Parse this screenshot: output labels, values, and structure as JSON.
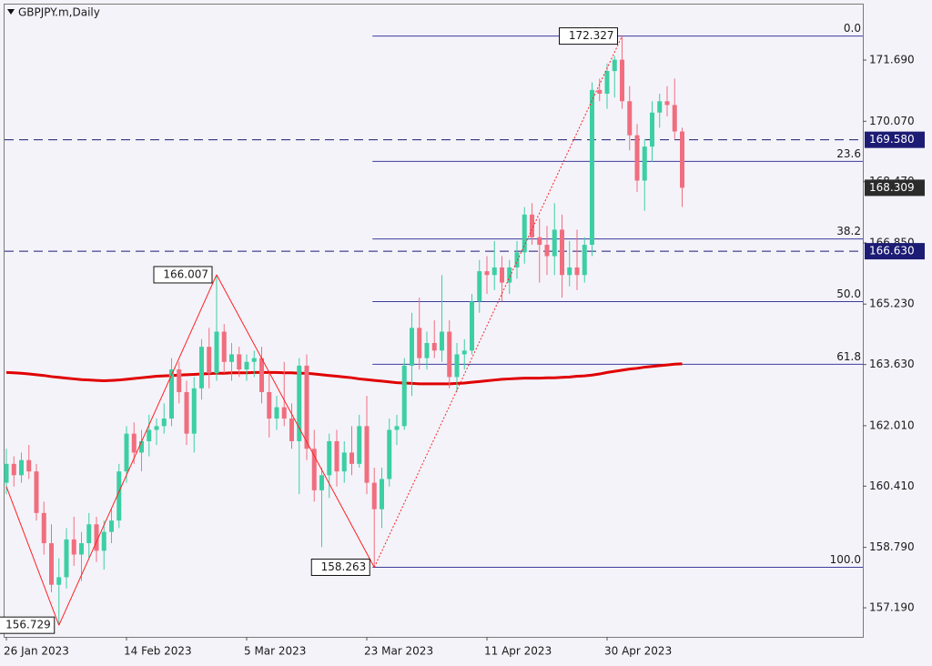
{
  "chart_data": {
    "type": "candlestick",
    "title": "GBPJPY.m,Daily",
    "categories": [
      "26 Jan 2023",
      null,
      null,
      null,
      null,
      null,
      null,
      null,
      null,
      null,
      null,
      null,
      null,
      null,
      null,
      null,
      "14 Feb 2023",
      null,
      null,
      null,
      null,
      null,
      null,
      null,
      null,
      null,
      null,
      null,
      null,
      null,
      null,
      null,
      "5 Mar 2023",
      null,
      null,
      null,
      null,
      null,
      null,
      null,
      null,
      null,
      null,
      null,
      null,
      null,
      null,
      null,
      "23 Mar 2023",
      null,
      null,
      null,
      null,
      null,
      null,
      null,
      null,
      null,
      null,
      null,
      null,
      null,
      null,
      null,
      "11 Apr 2023",
      null,
      null,
      null,
      null,
      null,
      null,
      null,
      null,
      null,
      null,
      null,
      null,
      null,
      null,
      null,
      "30 Apr 2023",
      null,
      null,
      null,
      null,
      null,
      null,
      null,
      null,
      null,
      null
    ],
    "open": [
      160.5,
      161.0,
      160.7,
      161.1,
      160.8,
      159.7,
      158.9,
      157.8,
      158.0,
      159.0,
      158.6,
      158.9,
      159.4,
      158.7,
      159.2,
      159.5,
      160.8,
      161.8,
      161.3,
      161.6,
      161.9,
      162.0,
      162.2,
      163.5,
      162.9,
      161.8,
      163.0,
      164.1,
      163.4,
      164.5,
      163.7,
      163.9,
      163.5,
      163.7,
      163.8,
      162.9,
      162.2,
      162.5,
      162.2,
      161.6,
      163.6,
      161.4,
      160.3,
      160.7,
      161.6,
      160.8,
      161.3,
      161.0,
      162.0,
      160.5,
      159.8,
      160.6,
      161.9,
      162.0,
      163.6,
      164.6,
      163.8,
      164.2,
      164.0,
      164.5,
      163.3,
      163.9,
      164.0,
      165.3,
      166.1,
      166.0,
      166.2,
      165.8,
      166.2,
      166.6,
      167.6,
      167.0,
      166.8,
      166.5,
      167.2,
      166.0,
      166.2,
      166.0,
      166.8,
      170.9,
      170.8,
      171.4,
      171.7,
      170.6,
      169.7,
      168.5,
      169.4,
      170.3,
      170.6,
      170.5,
      169.8
    ],
    "high": [
      161.4,
      161.2,
      161.3,
      161.5,
      161.0,
      160.0,
      159.4,
      158.5,
      159.3,
      159.6,
      159.2,
      159.7,
      159.6,
      159.5,
      159.8,
      161.0,
      162.0,
      162.1,
      161.9,
      162.3,
      162.2,
      162.6,
      163.8,
      163.7,
      163.2,
      163.3,
      164.3,
      164.6,
      166.007,
      164.7,
      164.2,
      164.1,
      163.9,
      164.0,
      164.1,
      163.4,
      162.8,
      163.7,
      162.6,
      163.8,
      163.9,
      161.9,
      160.9,
      161.8,
      161.9,
      161.6,
      162.0,
      162.3,
      162.8,
      160.9,
      160.9,
      162.2,
      162.3,
      163.8,
      165.0,
      165.4,
      164.5,
      164.8,
      166.0,
      164.8,
      164.2,
      164.3,
      165.5,
      166.4,
      166.5,
      166.9,
      166.5,
      166.4,
      166.9,
      167.8,
      167.9,
      167.5,
      167.3,
      167.9,
      167.6,
      166.9,
      167.2,
      167.0,
      171.1,
      171.2,
      171.6,
      171.8,
      172.327,
      171.0,
      170.0,
      169.6,
      170.6,
      170.8,
      171.0,
      171.2,
      169.9
    ],
    "low": [
      160.2,
      160.4,
      160.5,
      160.6,
      159.5,
      158.6,
      157.6,
      156.729,
      157.7,
      158.3,
      157.9,
      158.5,
      158.4,
      158.2,
      158.9,
      159.3,
      160.5,
      161.0,
      160.8,
      161.2,
      161.5,
      161.8,
      162.0,
      162.6,
      161.5,
      161.3,
      162.7,
      163.0,
      163.2,
      163.4,
      163.2,
      163.3,
      163.2,
      163.3,
      162.6,
      161.7,
      161.9,
      162.0,
      161.4,
      160.2,
      161.1,
      160.0,
      158.8,
      160.1,
      160.4,
      160.5,
      160.7,
      160.9,
      160.2,
      158.263,
      159.3,
      160.4,
      161.5,
      161.9,
      162.8,
      163.5,
      163.5,
      163.8,
      163.7,
      163.0,
      162.9,
      163.5,
      163.9,
      165.0,
      165.5,
      165.6,
      165.3,
      165.5,
      165.9,
      166.3,
      166.8,
      165.8,
      166.0,
      166.0,
      165.4,
      165.7,
      165.6,
      165.8,
      166.5,
      170.6,
      170.4,
      170.7,
      170.4,
      169.3,
      168.2,
      167.7,
      169.0,
      169.9,
      170.2,
      169.6,
      167.8
    ],
    "close": [
      161.0,
      160.7,
      161.1,
      160.8,
      159.7,
      158.9,
      157.8,
      158.0,
      159.0,
      158.6,
      158.9,
      159.4,
      158.7,
      159.2,
      159.5,
      160.8,
      161.8,
      161.3,
      161.6,
      161.9,
      162.0,
      162.2,
      163.5,
      162.9,
      161.8,
      163.0,
      164.1,
      163.4,
      164.5,
      163.7,
      163.9,
      163.5,
      163.7,
      163.8,
      162.9,
      162.2,
      162.5,
      162.2,
      161.6,
      163.6,
      161.4,
      160.3,
      160.7,
      161.6,
      160.8,
      161.3,
      161.0,
      162.0,
      160.5,
      159.8,
      160.6,
      161.9,
      162.0,
      163.6,
      164.6,
      163.8,
      164.2,
      164.0,
      164.5,
      163.3,
      163.9,
      164.0,
      165.3,
      166.1,
      166.0,
      166.2,
      165.8,
      166.2,
      166.6,
      167.6,
      167.0,
      166.8,
      166.5,
      167.2,
      166.0,
      166.2,
      166.0,
      166.8,
      170.9,
      170.8,
      171.4,
      171.7,
      170.6,
      169.7,
      168.5,
      169.4,
      170.3,
      170.6,
      170.5,
      169.8,
      168.309
    ],
    "moving_average": [
      163.42,
      163.41,
      163.4,
      163.38,
      163.36,
      163.34,
      163.31,
      163.29,
      163.27,
      163.25,
      163.23,
      163.22,
      163.21,
      163.2,
      163.21,
      163.22,
      163.24,
      163.26,
      163.28,
      163.3,
      163.32,
      163.33,
      163.34,
      163.35,
      163.36,
      163.37,
      163.38,
      163.39,
      163.4,
      163.4,
      163.41,
      163.41,
      163.41,
      163.42,
      163.42,
      163.42,
      163.42,
      163.41,
      163.41,
      163.4,
      163.4,
      163.38,
      163.36,
      163.34,
      163.32,
      163.3,
      163.28,
      163.25,
      163.23,
      163.21,
      163.19,
      163.17,
      163.15,
      163.14,
      163.13,
      163.12,
      163.12,
      163.12,
      163.12,
      163.12,
      163.13,
      163.14,
      163.16,
      163.18,
      163.2,
      163.22,
      163.24,
      163.25,
      163.26,
      163.27,
      163.27,
      163.27,
      163.28,
      163.28,
      163.29,
      163.3,
      163.32,
      163.33,
      163.35,
      163.38,
      163.42,
      163.45,
      163.48,
      163.51,
      163.53,
      163.56,
      163.58,
      163.6,
      163.62,
      163.64,
      163.65
    ],
    "up_color": "#3ccfa3",
    "down_color": "#f06e7e",
    "ma_color": "#e00000",
    "zigzag_color": "#ff2020",
    "zigzag": [
      {
        "index": 0,
        "price": 160.4
      },
      {
        "index": 7,
        "price": 156.729
      },
      {
        "index": 28,
        "price": 166.007
      },
      {
        "index": 49,
        "price": 158.263
      },
      {
        "index": 82,
        "price": 172.327
      }
    ],
    "fib_color": "#3c3c9c",
    "fib_levels": [
      {
        "label": "0.0",
        "price": 172.327
      },
      {
        "label": "23.6",
        "price": 169.008
      },
      {
        "label": "38.2",
        "price": 166.955
      },
      {
        "label": "50.0",
        "price": 165.295
      },
      {
        "label": "61.8",
        "price": 163.636
      },
      {
        "label": "100.0",
        "price": 158.263
      }
    ],
    "hlines": [
      {
        "value": 169.58,
        "label": "169.580"
      },
      {
        "value": 166.63,
        "label": "166.630"
      }
    ],
    "hline_color": "#1c1c74",
    "ylim": [
      156.42,
      173.16
    ],
    "yticks": [
      {
        "value": 157.19,
        "label": "157.190"
      },
      {
        "value": 158.79,
        "label": "158.790"
      },
      {
        "value": 160.41,
        "label": "160.410"
      },
      {
        "value": 162.01,
        "label": "162.010"
      },
      {
        "value": 163.63,
        "label": "163.630"
      },
      {
        "value": 165.23,
        "label": "165.230"
      },
      {
        "value": 166.85,
        "label": "166.850"
      },
      {
        "value": 168.47,
        "label": "168.470"
      },
      {
        "value": 170.07,
        "label": "170.070"
      },
      {
        "value": 171.69,
        "label": "171.690"
      }
    ]
  }
}
